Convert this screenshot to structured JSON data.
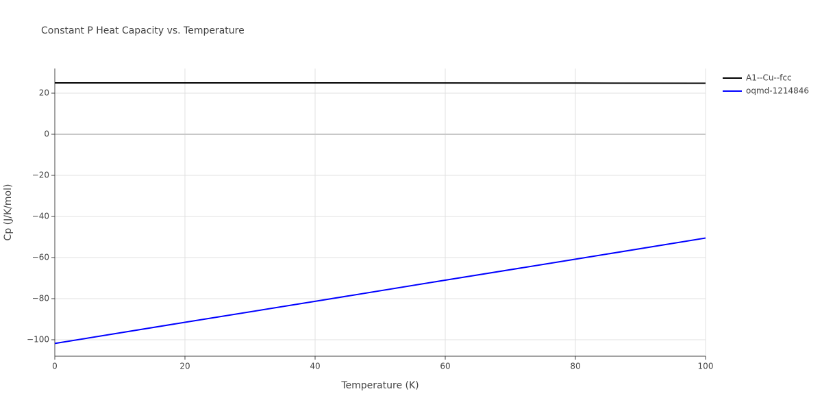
{
  "chart_data": {
    "type": "line",
    "title": "Constant P Heat Capacity vs. Temperature",
    "x_label": "Temperature (K)",
    "y_label": "Cp (J/K/mol)",
    "x": [
      0,
      20,
      40,
      60,
      80,
      100
    ],
    "series": [
      {
        "name": "A1--Cu--fcc",
        "color": "#000000",
        "values": [
          25.0,
          25.0,
          25.0,
          24.95,
          24.9,
          24.85
        ]
      },
      {
        "name": "oqmd-1214846",
        "color": "#0000ff",
        "values": [
          -101.8,
          -91.5,
          -81.3,
          -71.0,
          -60.8,
          -50.5
        ]
      }
    ],
    "xlim": [
      0,
      100
    ],
    "xticks": [
      0,
      20,
      40,
      60,
      80,
      100
    ],
    "ylim": [
      -108,
      32
    ],
    "yticks": [
      {
        "value": -100,
        "label": "−100"
      },
      {
        "value": -80,
        "label": "−80"
      },
      {
        "value": -60,
        "label": "−60"
      },
      {
        "value": -40,
        "label": "−40"
      },
      {
        "value": -20,
        "label": "−20"
      },
      0,
      20
    ],
    "grid": true,
    "legend": "right"
  }
}
